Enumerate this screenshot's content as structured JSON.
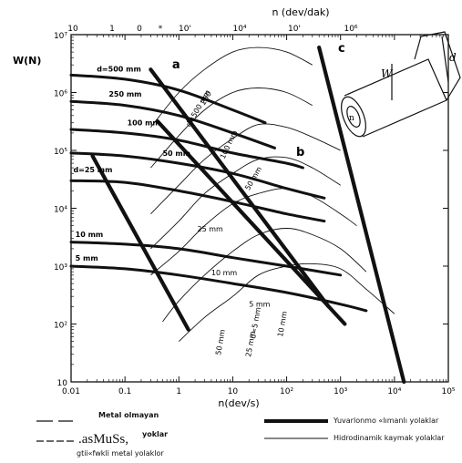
{
  "chart_data": {
    "type": "line",
    "title": "",
    "xlabel": "n(dev/s)",
    "ylabel": "W(N)",
    "x_scale": "log",
    "y_scale": "log",
    "xlim": [
      0.01,
      100000
    ],
    "ylim": [
      10,
      10000000
    ],
    "x_ticks": [
      "0.01",
      "0.1",
      "1",
      "10",
      "10²",
      "10³",
      "10⁴",
      "10⁵"
    ],
    "y_ticks": [
      "10",
      "10²",
      "10³",
      "10⁴",
      "10⁵",
      "10⁶",
      "10⁷"
    ],
    "top_axis": {
      "label": "n (dev/dak)",
      "ticks": [
        "10",
        "1",
        "0",
        "*",
        "10'",
        "10⁴",
        "10'",
        "10⁶"
      ]
    },
    "rolling_curves": [
      {
        "label": "d=500 mm",
        "x": [
          0.01,
          0.1,
          1,
          10,
          40
        ],
        "y": [
          2000000,
          1700000,
          1100000,
          500000,
          300000
        ]
      },
      {
        "label": "250 mm",
        "x": [
          0.01,
          0.1,
          1,
          10,
          60
        ],
        "y": [
          700000,
          600000,
          400000,
          200000,
          110000
        ]
      },
      {
        "label": "100 mm",
        "x": [
          0.01,
          0.1,
          1,
          10,
          100,
          200
        ],
        "y": [
          230000,
          200000,
          150000,
          90000,
          60000,
          50000
        ]
      },
      {
        "label": "50 mm",
        "x": [
          0.01,
          0.1,
          1,
          10,
          100,
          500
        ],
        "y": [
          90000,
          80000,
          60000,
          40000,
          22000,
          15000
        ]
      },
      {
        "label": "d=25 mm",
        "x": [
          0.01,
          0.1,
          1,
          10,
          100,
          500
        ],
        "y": [
          30000,
          28000,
          20000,
          13000,
          8000,
          6000
        ]
      },
      {
        "label": "10 mm",
        "x": [
          0.01,
          0.1,
          1,
          10,
          100,
          1000
        ],
        "y": [
          2600,
          2400,
          2000,
          1400,
          1000,
          700
        ]
      },
      {
        "label": "5 mm",
        "x": [
          0.01,
          0.1,
          1,
          10,
          100,
          1000,
          3000
        ],
        "y": [
          1000,
          900,
          700,
          500,
          350,
          220,
          170
        ]
      }
    ],
    "hydro_curves": [
      {
        "label": "d=500 mm",
        "x": [
          0.3,
          1,
          3,
          10,
          30,
          100,
          300
        ],
        "y": [
          250000,
          1000000,
          2500000,
          5000000,
          6000000,
          5000000,
          3000000
        ]
      },
      {
        "label": "250",
        "x": [
          0.3,
          1,
          3,
          10,
          30,
          100,
          300
        ],
        "y": [
          50000,
          180000,
          500000,
          1000000,
          1200000,
          1000000,
          600000
        ]
      },
      {
        "label": "100 mm",
        "x": [
          0.3,
          1,
          3,
          10,
          30,
          100,
          300,
          1000
        ],
        "y": [
          8000,
          25000,
          70000,
          160000,
          280000,
          250000,
          170000,
          100000
        ]
      },
      {
        "label": "50 mm",
        "x": [
          0.3,
          1,
          3,
          10,
          30,
          100,
          300,
          1000
        ],
        "y": [
          2000,
          6000,
          18000,
          40000,
          70000,
          75000,
          50000,
          25000
        ]
      },
      {
        "label": "25 mm",
        "x": [
          0.3,
          1,
          3,
          10,
          30,
          100,
          300,
          1000,
          2000
        ],
        "y": [
          700,
          1800,
          5000,
          12000,
          18000,
          22000,
          16000,
          8000,
          5000
        ]
      },
      {
        "label": "10 mm",
        "x": [
          0.5,
          1,
          3,
          10,
          30,
          100,
          300,
          1000,
          3000
        ],
        "y": [
          110,
          250,
          700,
          1800,
          3500,
          4500,
          3500,
          2000,
          800
        ]
      },
      {
        "label": "5 mm",
        "x": [
          1,
          3,
          10,
          30,
          100,
          300,
          1000,
          3000,
          10000
        ],
        "y": [
          50,
          130,
          300,
          700,
          1000,
          1100,
          900,
          400,
          150
        ]
      }
    ],
    "curve_labels": [
      "d=5 mm",
      "10 mm",
      "25 mm",
      "50 mm"
    ],
    "boundary_lines": [
      {
        "label": "",
        "x": [
          0.025,
          1.5
        ],
        "y": [
          80000,
          80
        ]
      },
      {
        "label": "a",
        "x": [
          0.3,
          600
        ],
        "y": [
          2500000,
          200
        ]
      },
      {
        "label": "b",
        "x": [
          0.4,
          1200
        ],
        "y": [
          320000,
          100
        ]
      },
      {
        "label": "c",
        "x": [
          400,
          15000
        ],
        "y": [
          6000000,
          10
        ]
      }
    ],
    "legend": [
      {
        "label": "Metal olmayan",
        "style": "dash-long"
      },
      {
        "label": ".asMuSs,",
        "style": "dash-short"
      },
      {
        "label": "yoklar",
        "style": "none"
      },
      {
        "label": "gtii«fwkli metal yolaklor",
        "style": "none"
      },
      {
        "label": "Yuvarlonmo «lımanlı yolaklar",
        "style": "thick"
      },
      {
        "label": "Hidrodinamik kaymak yolaklar",
        "style": "thin"
      }
    ],
    "diagram": {
      "label_w": "W",
      "label_d": "d",
      "label_n": "n"
    },
    "colors": {
      "ink": "#111111",
      "background": "#ffffff"
    }
  }
}
